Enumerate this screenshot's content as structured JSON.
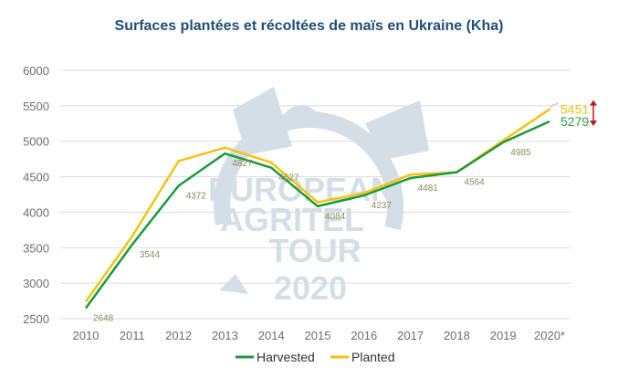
{
  "chart_data": {
    "type": "line",
    "title": "Surfaces plantées et récoltées de maïs en Ukraine (Kha)",
    "xlabel": "",
    "ylabel": "",
    "categories": [
      "2010",
      "2011",
      "2012",
      "2013",
      "2014",
      "2015",
      "2016",
      "2017",
      "2018",
      "2019",
      "2020*"
    ],
    "ylim": [
      2500,
      6000
    ],
    "yticks": [
      2500,
      3000,
      3500,
      4000,
      4500,
      5000,
      5500,
      6000
    ],
    "grid": true,
    "legend_position": "bottom",
    "series": [
      {
        "name": "Harvested",
        "color": "#1a9a3c",
        "values": [
          2648,
          3544,
          4372,
          4827,
          4627,
          4084,
          4237,
          4481,
          4564,
          4985,
          5279
        ]
      },
      {
        "name": "Planted",
        "color": "#f5c211",
        "values": [
          2740,
          3660,
          4720,
          4910,
          4700,
          4140,
          4270,
          4530,
          4564,
          5010,
          5451
        ]
      }
    ],
    "data_labels": [
      {
        "x": "2010",
        "y": 2648,
        "text": "2648"
      },
      {
        "x": "2011",
        "y": 3544,
        "text": "3544"
      },
      {
        "x": "2012",
        "y": 4372,
        "text": "4372"
      },
      {
        "x": "2013",
        "y": 4827,
        "text": "4827"
      },
      {
        "x": "2014",
        "y": 4627,
        "text": "4627"
      },
      {
        "x": "2015",
        "y": 4084,
        "text": "4084"
      },
      {
        "x": "2016",
        "y": 4237,
        "text": "4237"
      },
      {
        "x": "2017",
        "y": 4481,
        "text": "4481"
      },
      {
        "x": "2018",
        "y": 4564,
        "text": "4564"
      },
      {
        "x": "2019",
        "y": 4985,
        "text": "4985"
      }
    ],
    "end_labels": [
      {
        "series": "Planted",
        "text": "5451",
        "color": "#f5c211"
      },
      {
        "series": "Harvested",
        "text": "5279",
        "color": "#2e9d42"
      }
    ],
    "arrow_color": "#c0161b",
    "title_color": "#1f4e79"
  },
  "watermark": {
    "lines": [
      "EUROPEAN",
      "AGRITEL",
      "TOUR",
      "2020"
    ],
    "color": "#8faabf"
  }
}
